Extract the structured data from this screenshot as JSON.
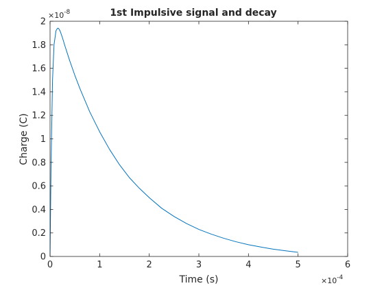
{
  "chart_data": {
    "type": "line",
    "title": "1st Impulsive signal and decay",
    "xlabel": "Time (s)",
    "ylabel": "Charge (C)",
    "xlim": [
      0,
      6
    ],
    "ylim": [
      0,
      2
    ],
    "x_exponent_label": "10",
    "x_exponent": "-4",
    "y_exponent_label": "10",
    "y_exponent": "-8",
    "x_ticks": [
      "0",
      "1",
      "2",
      "3",
      "4",
      "5",
      "6"
    ],
    "y_ticks": [
      "0",
      "0.2",
      "0.4",
      "0.6",
      "0.8",
      "1",
      "1.2",
      "1.4",
      "1.6",
      "1.8",
      "2"
    ],
    "grid": false,
    "line_color": "#0072BD",
    "series": [
      {
        "x": [
          0,
          0.02,
          0.05,
          0.08,
          0.12,
          0.15,
          0.17,
          0.2,
          0.25,
          0.3,
          0.4,
          0.5,
          0.6,
          0.7,
          0.8,
          1.0,
          1.2,
          1.4,
          1.6,
          1.8,
          2.0,
          2.25,
          2.5,
          2.75,
          3.0,
          3.25,
          3.5,
          3.75,
          4.0,
          4.25,
          4.5,
          4.75,
          5.0
        ],
        "values": [
          0,
          0.78,
          1.5,
          1.8,
          1.92,
          1.94,
          1.94,
          1.92,
          1.86,
          1.79,
          1.66,
          1.54,
          1.43,
          1.33,
          1.23,
          1.06,
          0.91,
          0.78,
          0.67,
          0.58,
          0.5,
          0.41,
          0.34,
          0.28,
          0.23,
          0.19,
          0.155,
          0.125,
          0.1,
          0.08,
          0.062,
          0.048,
          0.035
        ]
      }
    ]
  }
}
